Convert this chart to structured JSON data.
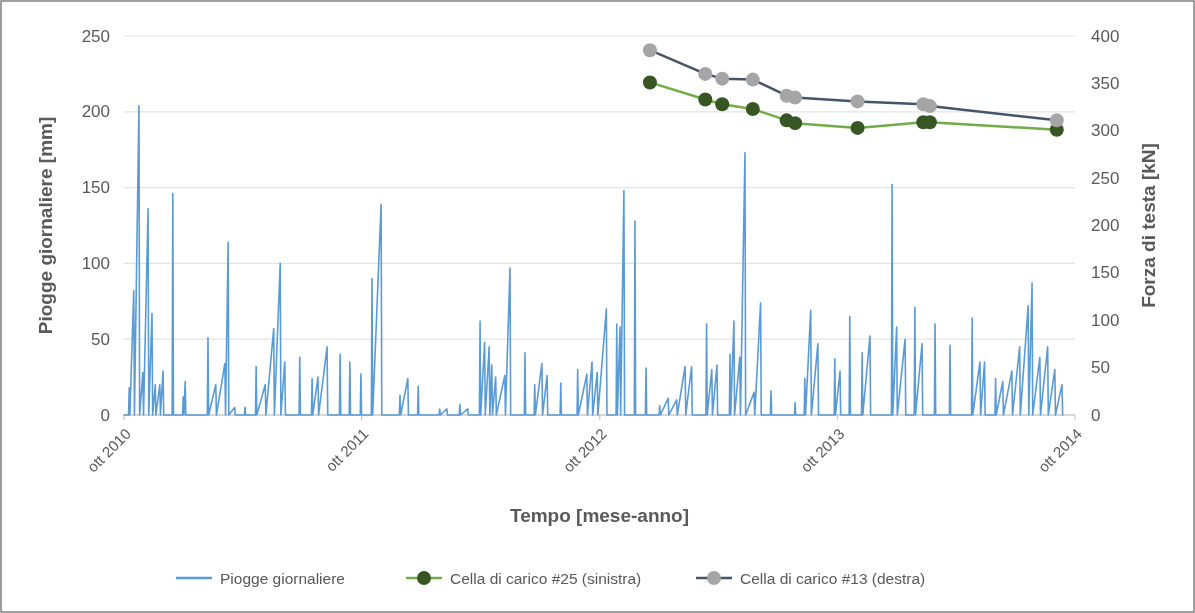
{
  "chart_data": {
    "type": "line",
    "xlabel": "Tempo [mese-anno]",
    "ylabel": "Piogge giornaliere [mm]",
    "y2label": "Forza di testa [kN]",
    "xlim": [
      "2010-10-01",
      "2014-10-01"
    ],
    "xticks": [
      {
        "value": "2010-10-01",
        "label": "ott 2010"
      },
      {
        "value": "2011-10-01",
        "label": "ott 2011"
      },
      {
        "value": "2012-10-01",
        "label": "ott 2012"
      },
      {
        "value": "2013-10-01",
        "label": "ott 2013"
      },
      {
        "value": "2014-10-01",
        "label": "ott 2014"
      }
    ],
    "ylim": [
      0,
      250
    ],
    "yticks": [
      0,
      50,
      100,
      150,
      200,
      250
    ],
    "y2lim": [
      0,
      400
    ],
    "y2ticks": [
      0,
      50,
      100,
      150,
      200,
      250,
      300,
      350,
      400
    ],
    "grid": "y",
    "legend": "bottom",
    "series": [
      {
        "name": "Piogge giornaliere",
        "color": "#5b9bd5",
        "marker": "none",
        "x": [
          "2010-10-01",
          "2010-10-08",
          "2010-10-09",
          "2010-10-10",
          "2010-10-16",
          "2010-10-17",
          "2010-10-24",
          "2010-10-25",
          "2010-10-30",
          "2010-10-31",
          "2010-11-07",
          "2010-11-08",
          "2010-11-13",
          "2010-11-14",
          "2010-11-18",
          "2010-11-19",
          "2010-11-25",
          "2010-11-26",
          "2010-11-30",
          "2010-12-01",
          "2010-12-14",
          "2010-12-15",
          "2010-12-16",
          "2010-12-30",
          "2010-12-31",
          "2011-01-01",
          "2011-01-03",
          "2011-01-04",
          "2011-02-06",
          "2011-02-07",
          "2011-02-08",
          "2011-02-19",
          "2011-02-20",
          "2011-03-05",
          "2011-03-06",
          "2011-03-10",
          "2011-03-11",
          "2011-03-20",
          "2011-03-21",
          "2011-04-04",
          "2011-04-05",
          "2011-04-06",
          "2011-04-21",
          "2011-04-22",
          "2011-04-23",
          "2011-05-06",
          "2011-05-07",
          "2011-05-19",
          "2011-05-20",
          "2011-05-29",
          "2011-05-30",
          "2011-06-05",
          "2011-06-06",
          "2011-06-27",
          "2011-06-28",
          "2011-06-29",
          "2011-07-16",
          "2011-07-17",
          "2011-07-18",
          "2011-07-26",
          "2011-07-27",
          "2011-08-09",
          "2011-08-10",
          "2011-08-28",
          "2011-08-29",
          "2011-08-30",
          "2011-09-12",
          "2011-09-13",
          "2011-09-14",
          "2011-09-29",
          "2011-09-30",
          "2011-10-01",
          "2011-10-16",
          "2011-10-17",
          "2011-10-18",
          "2011-10-31",
          "2011-11-01",
          "2011-11-28",
          "2011-11-29",
          "2011-11-30",
          "2011-12-11",
          "2011-12-12",
          "2011-12-26",
          "2011-12-27",
          "2011-12-28",
          "2012-01-28",
          "2012-01-29",
          "2012-01-30",
          "2012-02-09",
          "2012-02-10",
          "2012-02-28",
          "2012-02-29",
          "2012-03-01",
          "2012-03-12",
          "2012-03-13",
          "2012-03-30",
          "2012-03-31",
          "2012-04-01",
          "2012-04-07",
          "2012-04-08",
          "2012-04-14",
          "2012-04-15",
          "2012-04-18",
          "2012-04-19",
          "2012-04-24",
          "2012-04-25",
          "2012-05-08",
          "2012-05-09",
          "2012-05-16",
          "2012-05-17",
          "2012-06-07",
          "2012-06-08",
          "2012-06-09",
          "2012-06-22",
          "2012-06-23",
          "2012-06-24",
          "2012-07-04",
          "2012-07-05",
          "2012-07-12",
          "2012-07-13",
          "2012-08-01",
          "2012-08-02",
          "2012-08-03",
          "2012-08-27",
          "2012-08-28",
          "2012-08-29",
          "2012-09-11",
          "2012-09-12",
          "2012-09-19",
          "2012-09-20",
          "2012-09-27",
          "2012-09-28",
          "2012-10-11",
          "2012-10-12",
          "2012-10-26",
          "2012-10-27",
          "2012-10-28",
          "2012-11-01",
          "2012-11-02",
          "2012-11-07",
          "2012-11-08",
          "2012-11-23",
          "2012-11-24",
          "2012-11-25",
          "2012-12-10",
          "2012-12-11",
          "2012-12-12",
          "2012-12-31",
          "2013-01-01",
          "2013-01-02",
          "2013-01-14",
          "2013-01-15",
          "2013-01-27",
          "2013-01-28",
          "2013-02-09",
          "2013-02-10",
          "2013-02-19",
          "2013-02-20",
          "2013-03-13",
          "2013-03-14",
          "2013-03-15",
          "2013-03-22",
          "2013-03-23",
          "2013-03-30",
          "2013-03-31",
          "2013-04-18",
          "2013-04-19",
          "2013-04-20",
          "2013-04-25",
          "2013-04-26",
          "2013-05-04",
          "2013-05-05",
          "2013-05-12",
          "2013-05-13",
          "2013-05-26",
          "2013-05-27",
          "2013-06-05",
          "2013-06-06",
          "2013-06-20",
          "2013-06-21",
          "2013-06-22",
          "2013-07-27",
          "2013-07-28",
          "2013-07-29",
          "2013-08-11",
          "2013-08-12",
          "2013-08-13",
          "2013-08-21",
          "2013-08-22",
          "2013-09-01",
          "2013-09-02",
          "2013-09-26",
          "2013-09-27",
          "2013-09-28",
          "2013-10-05",
          "2013-10-06",
          "2013-10-19",
          "2013-10-20",
          "2013-10-21",
          "2013-11-07",
          "2013-11-08",
          "2013-11-09",
          "2013-11-20",
          "2013-11-21",
          "2013-12-23",
          "2013-12-24",
          "2013-12-25",
          "2013-12-31",
          "2014-01-01",
          "2014-01-13",
          "2014-01-14",
          "2014-01-27",
          "2014-01-28",
          "2014-01-29",
          "2014-02-08",
          "2014-02-09",
          "2014-02-27",
          "2014-02-28",
          "2014-03-01",
          "2014-03-22",
          "2014-03-23",
          "2014-03-24",
          "2014-04-25",
          "2014-04-26",
          "2014-04-27",
          "2014-05-08",
          "2014-05-09",
          "2014-05-15",
          "2014-05-16",
          "2014-05-31",
          "2014-06-01",
          "2014-06-02",
          "2014-06-12",
          "2014-06-13",
          "2014-06-26",
          "2014-06-27",
          "2014-07-08",
          "2014-07-09",
          "2014-07-21",
          "2014-07-22",
          "2014-07-27",
          "2014-07-28",
          "2014-08-08",
          "2014-08-09",
          "2014-08-20",
          "2014-08-21",
          "2014-08-31",
          "2014-09-01",
          "2014-09-11",
          "2014-09-12"
        ],
        "values": [
          0,
          0,
          18,
          0,
          82,
          0,
          204,
          0,
          28,
          0,
          136,
          0,
          67,
          0,
          20,
          0,
          20,
          0,
          29,
          0,
          0,
          146,
          0,
          0,
          12,
          0,
          22,
          0,
          0,
          51,
          0,
          20,
          0,
          34,
          0,
          114,
          0,
          5,
          0,
          0,
          5,
          0,
          0,
          32,
          0,
          20,
          0,
          57,
          0,
          100,
          0,
          35,
          0,
          0,
          38,
          0,
          0,
          24,
          0,
          25,
          0,
          45,
          0,
          0,
          40,
          0,
          0,
          35,
          0,
          0,
          27,
          0,
          0,
          90,
          0,
          139,
          0,
          0,
          13,
          0,
          24,
          0,
          0,
          19,
          0,
          0,
          4,
          0,
          4,
          0,
          0,
          7,
          0,
          4,
          0,
          0,
          62,
          0,
          48,
          0,
          45,
          0,
          33,
          0,
          25,
          0,
          26,
          0,
          97,
          0,
          0,
          41,
          0,
          0,
          20,
          0,
          34,
          0,
          26,
          0,
          0,
          21,
          0,
          0,
          30,
          0,
          27,
          0,
          35,
          0,
          28,
          0,
          70,
          0,
          0,
          60,
          0,
          58,
          0,
          148,
          0,
          0,
          128,
          0,
          0,
          31,
          0,
          0,
          6,
          0,
          11,
          0,
          10,
          0,
          32,
          0,
          32,
          0,
          0,
          60,
          0,
          30,
          0,
          33,
          0,
          0,
          40,
          0,
          62,
          0,
          38,
          0,
          173,
          0,
          15,
          0,
          74,
          0,
          0,
          16,
          0,
          0,
          8,
          0,
          0,
          24,
          0,
          69,
          0,
          47,
          0,
          0,
          37,
          0,
          29,
          0,
          0,
          65,
          0,
          0,
          41,
          0,
          52,
          0,
          0,
          152,
          0,
          58,
          0,
          50,
          0,
          0,
          71,
          0,
          47,
          0,
          0,
          60,
          0,
          0,
          46,
          0,
          0,
          64,
          0,
          35,
          0,
          35,
          0,
          0,
          24,
          0,
          22,
          0,
          29,
          0,
          45,
          0,
          72,
          0,
          87,
          0,
          38,
          0,
          45,
          0,
          30,
          0,
          20,
          0
        ]
      },
      {
        "name": "Cella di carico #25 (sinistra)",
        "color": "#70ad47",
        "colors": [
          "#375623",
          "#375623",
          "#375623",
          "#375623",
          "#375623",
          "#375623",
          "#375623",
          "#375623",
          "#375623",
          "#375623"
        ],
        "marker": "circle",
        "axis": "y2",
        "x": [
          "2012-12-17",
          "2013-03-12",
          "2013-04-07",
          "2013-05-24",
          "2013-07-15",
          "2013-07-28",
          "2013-11-01",
          "2014-02-10",
          "2014-02-20",
          "2014-09-03"
        ],
        "values": [
          351,
          333,
          328,
          323,
          311,
          308,
          303,
          309,
          309,
          301
        ]
      },
      {
        "name": "Cella di carico #13 (destra)",
        "color": "#44546a",
        "colors": [
          "#a5a5a5",
          "#a5a5a5",
          "#a5a5a5",
          "#a5a5a5",
          "#a5a5a5",
          "#a5a5a5",
          "#a5a5a5",
          "#a5a5a5",
          "#a5a5a5",
          "#a5a5a5"
        ],
        "marker": "circle",
        "axis": "y2",
        "x": [
          "2012-12-17",
          "2013-03-12",
          "2013-04-07",
          "2013-05-24",
          "2013-07-15",
          "2013-07-28",
          "2013-11-01",
          "2014-02-10",
          "2014-02-20",
          "2014-09-03"
        ],
        "values": [
          385,
          360,
          355,
          354,
          337,
          335,
          331,
          328,
          326,
          311
        ]
      }
    ]
  }
}
